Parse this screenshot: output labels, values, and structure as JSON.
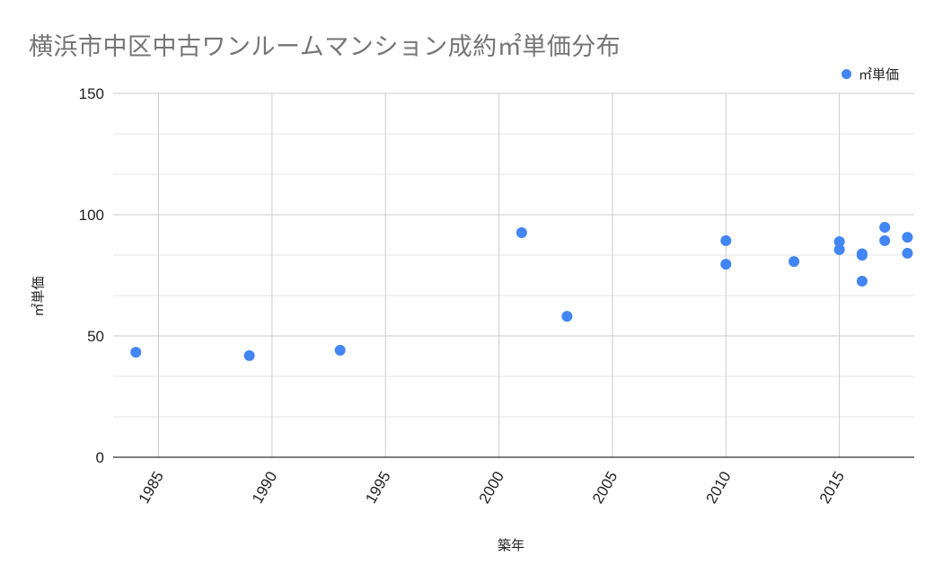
{
  "title": "横浜市中区中古ワンルームマンション成約㎡単価分布",
  "legend": {
    "label": "㎡単価",
    "color": "#4285f4",
    "position": "top-right"
  },
  "axes": {
    "xlabel": "築年",
    "ylabel": "㎡単価",
    "xticks": [
      "1985",
      "1990",
      "1995",
      "2000",
      "2005",
      "2010",
      "2015"
    ],
    "yticks": [
      "0",
      "50",
      "100",
      "150"
    ]
  },
  "chart_data": {
    "type": "scatter",
    "title": "横浜市中区中古ワンルームマンション成約㎡単価分布",
    "xlabel": "築年",
    "ylabel": "㎡単価",
    "xlim": [
      1983,
      2018.3
    ],
    "ylim": [
      0,
      150
    ],
    "grid": true,
    "legend_position": "top-right",
    "series": [
      {
        "name": "㎡単価",
        "color": "#4285f4",
        "points": [
          {
            "x": 1984,
            "y": 43.3
          },
          {
            "x": 1989,
            "y": 41.9
          },
          {
            "x": 1993,
            "y": 44.1
          },
          {
            "x": 2001,
            "y": 92.6
          },
          {
            "x": 2003,
            "y": 58.1
          },
          {
            "x": 2010,
            "y": 89.3
          },
          {
            "x": 2010,
            "y": 79.6
          },
          {
            "x": 2013,
            "y": 80.7
          },
          {
            "x": 2015,
            "y": 88.9
          },
          {
            "x": 2015,
            "y": 85.6
          },
          {
            "x": 2016,
            "y": 83.9
          },
          {
            "x": 2016,
            "y": 83.3
          },
          {
            "x": 2016,
            "y": 72.6
          },
          {
            "x": 2017,
            "y": 94.8
          },
          {
            "x": 2017,
            "y": 89.3
          },
          {
            "x": 2018,
            "y": 90.7
          },
          {
            "x": 2018,
            "y": 84.1
          }
        ]
      }
    ]
  }
}
